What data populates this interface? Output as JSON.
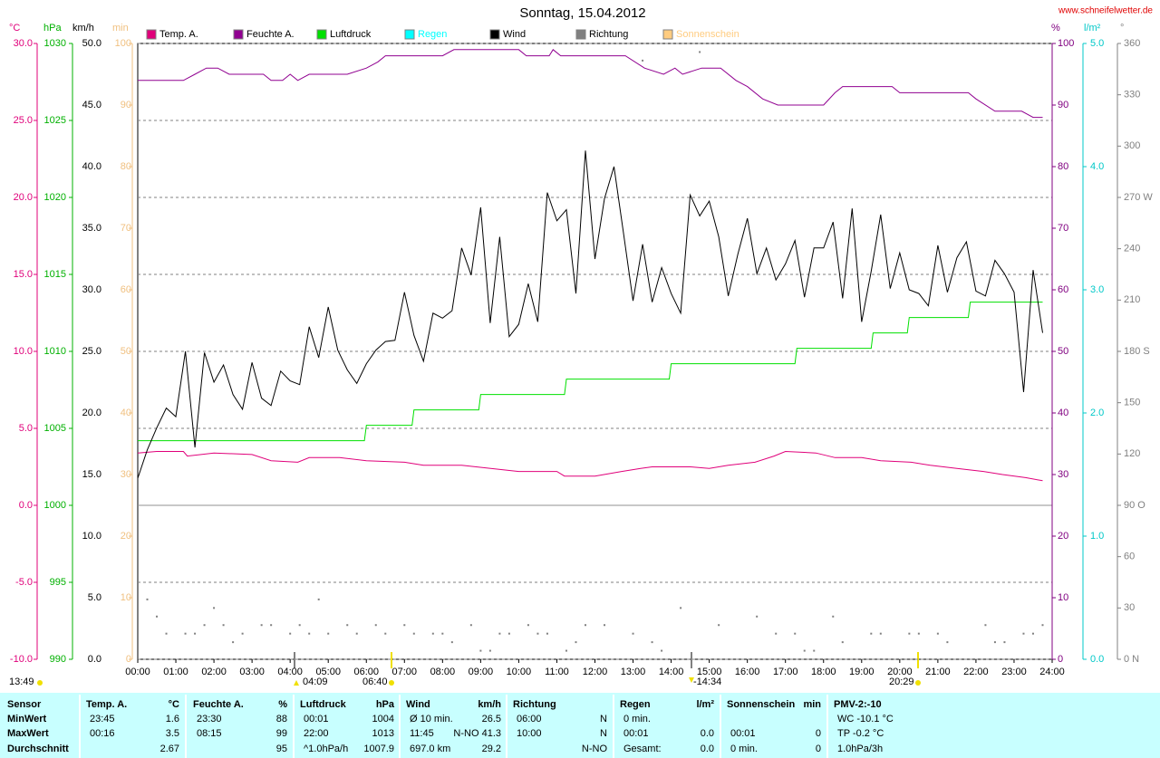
{
  "chart_data": {
    "type": "line",
    "title": "Sonntag, 15.04.2012",
    "site": "www.schneifelwetter.de",
    "grid": true,
    "xlim": [
      0,
      24
    ],
    "xticks": [
      {
        "value": 0,
        "label": "00:00"
      },
      {
        "value": 1,
        "label": "01:00"
      },
      {
        "value": 2,
        "label": "02:00"
      },
      {
        "value": 3,
        "label": "03:00"
      },
      {
        "value": 4,
        "label": "04:00"
      },
      {
        "value": 5,
        "label": "05:00"
      },
      {
        "value": 6,
        "label": "06:00"
      },
      {
        "value": 7,
        "label": "07:00"
      },
      {
        "value": 8,
        "label": "08:00"
      },
      {
        "value": 9,
        "label": "09:00"
      },
      {
        "value": 10,
        "label": "10:00"
      },
      {
        "value": 11,
        "label": "11:00"
      },
      {
        "value": 12,
        "label": "12:00"
      },
      {
        "value": 13,
        "label": "13:00"
      },
      {
        "value": 14,
        "label": "14:00"
      },
      {
        "value": 15,
        "label": "15:00"
      },
      {
        "value": 16,
        "label": "16:00"
      },
      {
        "value": 17,
        "label": "17:00"
      },
      {
        "value": 18,
        "label": "18:00"
      },
      {
        "value": 19,
        "label": "19:00"
      },
      {
        "value": 20,
        "label": "20:00"
      },
      {
        "value": 21,
        "label": "21:00"
      },
      {
        "value": 22,
        "label": "22:00"
      },
      {
        "value": 23,
        "label": "23:00"
      },
      {
        "value": 24,
        "label": "24:00"
      }
    ],
    "axes": {
      "temp": {
        "label": "°C",
        "color": "#e0007a",
        "ylim": [
          -10,
          30
        ],
        "yticks": [
          {
            "value": -10,
            "label": "-10.0"
          },
          {
            "value": -5,
            "label": "-5.0"
          },
          {
            "value": 0,
            "label": "0.0"
          },
          {
            "value": 5,
            "label": "5.0"
          },
          {
            "value": 10,
            "label": "10.0"
          },
          {
            "value": 15,
            "label": "15.0"
          },
          {
            "value": 20,
            "label": "20.0"
          },
          {
            "value": 25,
            "label": "25.0"
          },
          {
            "value": 30,
            "label": "30.0"
          }
        ]
      },
      "hpa": {
        "label": "hPa",
        "color": "#00b000",
        "ylim": [
          990,
          1030
        ],
        "yticks": [
          990,
          995,
          1000,
          1005,
          1010,
          1015,
          1020,
          1025,
          1030
        ]
      },
      "kmh": {
        "label": "km/h",
        "color": "#000000",
        "ylim": [
          0,
          50
        ],
        "yticks": [
          {
            "value": 0,
            "label": "0.0"
          },
          {
            "value": 5,
            "label": "5.0"
          },
          {
            "value": 10,
            "label": "10.0"
          },
          {
            "value": 15,
            "label": "15.0"
          },
          {
            "value": 20,
            "label": "20.0"
          },
          {
            "value": 25,
            "label": "25.0"
          },
          {
            "value": 30,
            "label": "30.0"
          },
          {
            "value": 35,
            "label": "35.0"
          },
          {
            "value": 40,
            "label": "40.0"
          },
          {
            "value": 45,
            "label": "45.0"
          },
          {
            "value": 50,
            "label": "50.0"
          }
        ]
      },
      "min": {
        "label": "min",
        "color": "#f0c080",
        "ylim": [
          0,
          100
        ],
        "yticks": [
          0,
          10,
          20,
          30,
          40,
          50,
          60,
          70,
          80,
          90,
          100
        ]
      },
      "pct": {
        "label": "%",
        "color": "#800080",
        "ylim": [
          0,
          100
        ],
        "yticks": [
          0,
          10,
          20,
          30,
          40,
          50,
          60,
          70,
          80,
          90,
          100
        ]
      },
      "rain": {
        "label": "l/m²",
        "color": "#00c8c8",
        "ylim": [
          0,
          5
        ],
        "yticks": [
          {
            "value": 0,
            "label": "0.0"
          },
          {
            "value": 1,
            "label": "1.0"
          },
          {
            "value": 2,
            "label": "2.0"
          },
          {
            "value": 3,
            "label": "3.0"
          },
          {
            "value": 4,
            "label": "4.0"
          },
          {
            "value": 5,
            "label": "5.0"
          }
        ]
      },
      "deg": {
        "label": "°",
        "color": "#808080",
        "ylim": [
          0,
          360
        ],
        "yticks": [
          {
            "value": 0,
            "label": "0 N"
          },
          30,
          60,
          {
            "value": 90,
            "label": "90 O"
          },
          120,
          150,
          {
            "value": 180,
            "label": "180 S"
          },
          210,
          240,
          {
            "value": 270,
            "label": "270 W"
          },
          300,
          330,
          360
        ]
      }
    },
    "series": [
      {
        "name": "Temp. A.",
        "color": "#e0007a",
        "axis": "temp",
        "style": "line",
        "x": [
          0,
          0.5,
          1.2,
          1.3,
          2,
          3,
          3.5,
          4.2,
          4.5,
          5.3,
          6,
          7,
          7.5,
          8.5,
          10,
          11,
          11.2,
          12,
          12.7,
          13.2,
          13.5,
          14.5,
          15,
          15.5,
          16.2,
          16.7,
          17,
          17.8,
          18.3,
          19,
          19.5,
          20.3,
          20.8,
          21.5,
          22.2,
          22.7,
          23.3,
          23.75
        ],
        "values": [
          3.4,
          3.5,
          3.5,
          3.2,
          3.4,
          3.3,
          2.9,
          2.8,
          3.1,
          3.1,
          2.9,
          2.8,
          2.6,
          2.6,
          2.2,
          2.2,
          1.9,
          1.9,
          2.2,
          2.4,
          2.5,
          2.5,
          2.4,
          2.6,
          2.8,
          3.2,
          3.5,
          3.4,
          3.1,
          3.1,
          2.9,
          2.8,
          2.6,
          2.4,
          2.2,
          2.0,
          1.8,
          1.6
        ]
      },
      {
        "name": "Feuchte A.",
        "color": "#900090",
        "axis": "pct",
        "style": "line",
        "x": [
          0,
          1.2,
          1.5,
          1.8,
          2.1,
          2.4,
          3.3,
          3.5,
          3.8,
          4,
          4.2,
          4.5,
          5.5,
          6,
          6.3,
          6.5,
          8,
          8.3,
          10,
          10.2,
          10.8,
          10.9,
          11.1,
          12.8,
          13.3,
          13.8,
          14.1,
          14.3,
          14.8,
          15.3,
          15.7,
          16,
          16.4,
          16.8,
          18,
          18.3,
          18.5,
          19.8,
          20,
          21.8,
          22,
          22.5,
          23.2,
          23.5,
          23.75
        ],
        "values": [
          94,
          94,
          95,
          96,
          96,
          95,
          95,
          94,
          94,
          95,
          94,
          95,
          95,
          96,
          97,
          98,
          98,
          99,
          99,
          98,
          98,
          99,
          98,
          98,
          96,
          95,
          96,
          95,
          96,
          96,
          94,
          93,
          91,
          90,
          90,
          92,
          93,
          93,
          92,
          92,
          91,
          89,
          89,
          88,
          88
        ]
      },
      {
        "name": "Luftdruck",
        "color": "#00e000",
        "axis": "hpa",
        "style": "line",
        "x": [
          0,
          5.95,
          6,
          7.2,
          7.25,
          8.95,
          9,
          11.2,
          11.25,
          13.95,
          14,
          17.25,
          17.3,
          19.25,
          19.3,
          20.2,
          20.25,
          21.8,
          21.85,
          23.75
        ],
        "values": [
          1004.2,
          1004.2,
          1005.2,
          1005.2,
          1006.2,
          1006.2,
          1007.2,
          1007.2,
          1008.2,
          1008.2,
          1009.2,
          1009.2,
          1010.2,
          1010.2,
          1011.2,
          1011.2,
          1012.2,
          1012.2,
          1013.2,
          1013.2
        ]
      },
      {
        "name": "Regen",
        "color": "#00ffff",
        "axis": "rain",
        "style": "line",
        "x": [],
        "values": []
      },
      {
        "name": "Wind",
        "color": "#000000",
        "axis": "kmh",
        "style": "line",
        "x": [
          0,
          0.25,
          0.5,
          0.75,
          1,
          1.25,
          1.5,
          1.75,
          2,
          2.25,
          2.5,
          2.75,
          3,
          3.25,
          3.5,
          3.75,
          4,
          4.25,
          4.5,
          4.75,
          5,
          5.25,
          5.5,
          5.75,
          6,
          6.25,
          6.5,
          6.75,
          7,
          7.25,
          7.5,
          7.75,
          8,
          8.25,
          8.5,
          8.75,
          9,
          9.25,
          9.5,
          9.75,
          10,
          10.25,
          10.5,
          10.75,
          11,
          11.25,
          11.5,
          11.75,
          12,
          12.25,
          12.5,
          12.75,
          13,
          13.25,
          13.5,
          13.75,
          14,
          14.25,
          14.5,
          14.75,
          15,
          15.25,
          15.5,
          15.75,
          16,
          16.25,
          16.5,
          16.75,
          17,
          17.25,
          17.5,
          17.75,
          18,
          18.25,
          18.5,
          18.75,
          19,
          19.25,
          19.5,
          19.75,
          20,
          20.25,
          20.5,
          20.75,
          21,
          21.25,
          21.5,
          21.75,
          22,
          22.25,
          22.5,
          22.75,
          23,
          23.25,
          23.5,
          23.75
        ],
        "values": [
          14.7,
          17.0,
          18.8,
          20.4,
          19.7,
          25.0,
          17.2,
          24.9,
          22.5,
          23.9,
          21.5,
          20.3,
          24.1,
          21.2,
          20.6,
          23.4,
          22.6,
          22.3,
          27.0,
          24.5,
          28.6,
          25.1,
          23.5,
          22.4,
          24.0,
          25.1,
          25.8,
          25.9,
          29.8,
          26.3,
          24.2,
          28.1,
          27.7,
          28.3,
          33.4,
          31.2,
          36.7,
          27.3,
          34.3,
          26.2,
          27.2,
          30.5,
          27.4,
          37.9,
          35.6,
          36.5,
          29.7,
          41.3,
          32.5,
          37.4,
          40.0,
          34.6,
          29.1,
          33.7,
          29.0,
          31.8,
          29.7,
          28.1,
          37.7,
          36.0,
          37.2,
          34.3,
          29.5,
          32.9,
          35.8,
          31.3,
          33.4,
          30.8,
          32.1,
          34.0,
          29.4,
          33.4,
          33.4,
          35.5,
          29.3,
          36.6,
          27.4,
          31.5,
          36.1,
          30.1,
          33.0,
          30.0,
          29.7,
          28.7,
          33.6,
          29.8,
          32.6,
          33.9,
          29.9,
          29.5,
          32.4,
          31.3,
          29.8,
          21.7,
          31.6,
          26.5
        ]
      },
      {
        "name": "Richtung",
        "color": "#808080",
        "axis": "deg",
        "style": "dots",
        "x": [
          0.25,
          0.5,
          0.75,
          1.25,
          1.5,
          1.75,
          2,
          2.25,
          2.5,
          2.75,
          3.25,
          3.5,
          4,
          4.25,
          4.5,
          4.75,
          5,
          5.5,
          5.75,
          6.25,
          6.5,
          7,
          7.25,
          7.75,
          8,
          8.25,
          8.75,
          9,
          9.25,
          9.5,
          9.75,
          10.25,
          10.5,
          10.75,
          11.25,
          11.5,
          11.75,
          12.25,
          13,
          13.25,
          13.5,
          13.75,
          14.25,
          14.75,
          15.25,
          16.25,
          16.75,
          17.25,
          17.5,
          17.75,
          18.25,
          18.5,
          19.25,
          19.5,
          20.25,
          20.5,
          21,
          21.25,
          22.25,
          22.5,
          22.75,
          23.25,
          23.5,
          23.75
        ],
        "values": [
          35,
          25,
          15,
          15,
          15,
          20,
          30,
          20,
          10,
          15,
          20,
          20,
          15,
          20,
          15,
          35,
          15,
          20,
          15,
          20,
          15,
          20,
          15,
          15,
          15,
          10,
          20,
          5,
          5,
          15,
          15,
          20,
          15,
          15,
          5,
          10,
          20,
          20,
          15,
          350,
          10,
          5,
          30,
          355,
          20,
          25,
          15,
          15,
          5,
          5,
          25,
          10,
          15,
          15,
          15,
          15,
          15,
          10,
          20,
          10,
          10,
          15,
          15,
          20
        ]
      },
      {
        "name": "Sonnenschein",
        "color": "#ffcc80",
        "axis": "min",
        "style": "line",
        "x": [],
        "values": []
      }
    ],
    "events": [
      "13:49",
      "04:09",
      "06:40",
      "-14:34",
      "20:29"
    ]
  },
  "table": {
    "sensor": {
      "title": "Sensor",
      "rows": [
        "MinWert",
        "MaxWert",
        "Durchschnitt"
      ]
    },
    "columns": [
      {
        "title": "Temp. A.",
        "unit": "°C",
        "rows": [
          [
            "23:45",
            "1.6"
          ],
          [
            "00:16",
            "3.5"
          ],
          [
            null,
            "2.67"
          ]
        ]
      },
      {
        "title": "Feuchte A.",
        "unit": "%",
        "rows": [
          [
            "23:30",
            "88"
          ],
          [
            "08:15",
            "99"
          ],
          [
            null,
            "95"
          ]
        ]
      },
      {
        "title": "Luftdruck",
        "unit": "hPa",
        "rows": [
          [
            "00:01",
            "1004"
          ],
          [
            "22:00",
            "1013"
          ],
          [
            "^1.0hPa/h",
            "1007.9"
          ]
        ]
      },
      {
        "title": "Wind",
        "unit": "km/h",
        "rows": [
          [
            "Ø 10 min.",
            "26.5"
          ],
          [
            "11:45",
            "N-NO 41.3"
          ],
          [
            "697.0 km",
            "29.2"
          ]
        ]
      },
      {
        "title": "Richtung",
        "unit": null,
        "rows": [
          [
            "06:00",
            "N"
          ],
          [
            "10:00",
            "N"
          ],
          [
            null,
            "N-NO"
          ]
        ]
      },
      {
        "title": "Regen",
        "unit": "l/m²",
        "rows": [
          [
            "0 min.",
            null
          ],
          [
            "00:01",
            "0.0"
          ],
          [
            "Gesamt:",
            "0.0"
          ]
        ]
      },
      {
        "title": "Sonnenschein",
        "unit": "min",
        "rows": [
          [
            null,
            null
          ],
          [
            "00:01",
            "0"
          ],
          [
            "0 min.",
            "0"
          ]
        ]
      },
      {
        "title": "PMV-2:-10",
        "unit": null,
        "rows": [
          [
            "WC -10.1 °C",
            null
          ],
          [
            "TP -0.2 °C",
            null
          ],
          [
            "1.0hPa/3h",
            null
          ]
        ]
      }
    ]
  }
}
